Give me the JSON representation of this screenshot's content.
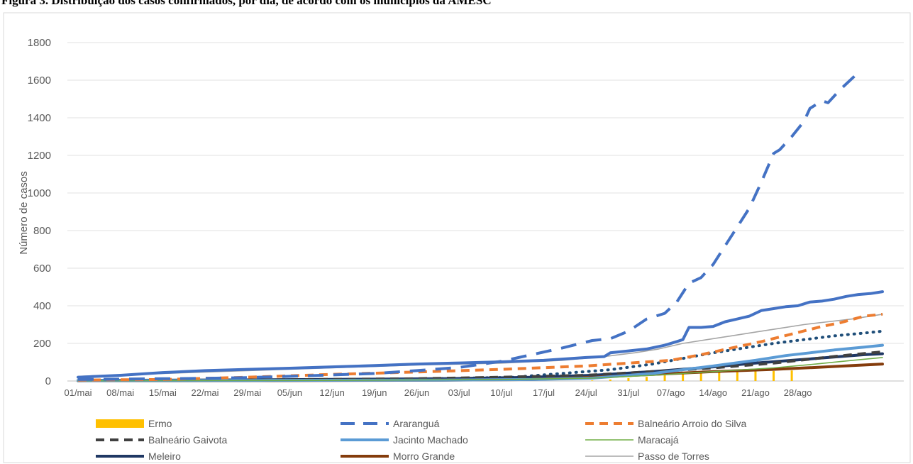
{
  "page_title": "Figura 3. Distribuição dos casos confirmados, por dia, de acordo com os municípios da AMESC",
  "chart_data": {
    "type": "line",
    "title": "",
    "xlabel": "",
    "ylabel": "Número de casos",
    "ylim": [
      0,
      1800
    ],
    "yticks": [
      "0",
      "200",
      "400",
      "600",
      "800",
      "1000",
      "1200",
      "1400",
      "1600",
      "1800"
    ],
    "x_tick_labels": [
      "01/mai",
      "08/mai",
      "15/mai",
      "22/mai",
      "29/mai",
      "05/jun",
      "12/jun",
      "19/jun",
      "26/jun",
      "03/jul",
      "10/jul",
      "17/jul",
      "24/jul",
      "31/jul",
      "07/ago",
      "14/ago",
      "21/ago",
      "28/ago"
    ],
    "x_range_days": [
      0,
      119
    ],
    "grid": "horizontal",
    "legend_position": "bottom",
    "series": [
      {
        "name": "Ermo",
        "style": "bar",
        "color": "#FFC000",
        "points": [
          [
            85,
            3
          ],
          [
            88,
            8
          ],
          [
            91,
            15
          ],
          [
            94,
            22
          ],
          [
            97,
            30
          ],
          [
            100,
            38
          ],
          [
            103,
            43
          ],
          [
            106,
            46
          ],
          [
            109,
            49
          ],
          [
            112,
            51
          ],
          [
            115,
            53
          ],
          [
            118,
            56
          ]
        ]
      },
      {
        "name": "Araranguá",
        "style": "long-dash",
        "color": "#4472C4",
        "points": [
          [
            0,
            8
          ],
          [
            7,
            10
          ],
          [
            14,
            12
          ],
          [
            21,
            14
          ],
          [
            28,
            18
          ],
          [
            35,
            25
          ],
          [
            42,
            32
          ],
          [
            49,
            40
          ],
          [
            56,
            55
          ],
          [
            63,
            72
          ],
          [
            70,
            105
          ],
          [
            75,
            140
          ],
          [
            80,
            175
          ],
          [
            85,
            215
          ],
          [
            88,
            225
          ],
          [
            91,
            265
          ],
          [
            94,
            330
          ],
          [
            97,
            360
          ],
          [
            99,
            420
          ],
          [
            101,
            520
          ],
          [
            103,
            550
          ],
          [
            105,
            620
          ],
          [
            107,
            720
          ],
          [
            109,
            820
          ],
          [
            111,
            920
          ],
          [
            113,
            1060
          ],
          [
            115,
            1210
          ],
          [
            116,
            1230
          ],
          [
            118,
            1300
          ],
          [
            120,
            1380
          ],
          [
            121,
            1450
          ],
          [
            123,
            1490
          ],
          [
            124,
            1480
          ],
          [
            126,
            1550
          ],
          [
            128,
            1610
          ],
          [
            129,
            1640
          ]
        ]
      },
      {
        "name": "Balneário Arroio do Silva",
        "style": "dash",
        "color": "#ED7D31",
        "points": [
          [
            0,
            5
          ],
          [
            14,
            8
          ],
          [
            28,
            20
          ],
          [
            42,
            35
          ],
          [
            56,
            48
          ],
          [
            70,
            62
          ],
          [
            84,
            80
          ],
          [
            91,
            95
          ],
          [
            98,
            110
          ],
          [
            103,
            140
          ],
          [
            108,
            175
          ],
          [
            113,
            210
          ],
          [
            118,
            250
          ],
          [
            123,
            290
          ],
          [
            126,
            310
          ],
          [
            130,
            345
          ],
          [
            133,
            355
          ]
        ]
      },
      {
        "name": "Balneário Gaivota",
        "style": "dash",
        "color": "#404040",
        "points": [
          [
            0,
            2
          ],
          [
            28,
            5
          ],
          [
            56,
            12
          ],
          [
            70,
            20
          ],
          [
            84,
            30
          ],
          [
            95,
            50
          ],
          [
            105,
            70
          ],
          [
            115,
            95
          ],
          [
            122,
            120
          ],
          [
            128,
            140
          ],
          [
            133,
            155
          ]
        ]
      },
      {
        "name": "Jacinto Machado",
        "style": "solid-thick",
        "color": "#5B9BD5",
        "points": [
          [
            0,
            2
          ],
          [
            30,
            3
          ],
          [
            60,
            5
          ],
          [
            75,
            8
          ],
          [
            85,
            15
          ],
          [
            95,
            40
          ],
          [
            105,
            80
          ],
          [
            112,
            110
          ],
          [
            117,
            135
          ],
          [
            121,
            150
          ],
          [
            125,
            165
          ],
          [
            130,
            180
          ],
          [
            133,
            190
          ]
        ]
      },
      {
        "name": "Maracajá",
        "style": "solid-thin",
        "color": "#70AD47",
        "points": [
          [
            0,
            1
          ],
          [
            40,
            3
          ],
          [
            70,
            8
          ],
          [
            85,
            15
          ],
          [
            95,
            30
          ],
          [
            105,
            50
          ],
          [
            115,
            70
          ],
          [
            122,
            90
          ],
          [
            128,
            110
          ],
          [
            133,
            125
          ]
        ]
      },
      {
        "name": "Meleiro",
        "style": "solid-thick",
        "color": "#203864",
        "points": [
          [
            0,
            3
          ],
          [
            30,
            6
          ],
          [
            60,
            12
          ],
          [
            75,
            20
          ],
          [
            85,
            30
          ],
          [
            95,
            50
          ],
          [
            105,
            75
          ],
          [
            112,
            95
          ],
          [
            118,
            110
          ],
          [
            124,
            125
          ],
          [
            130,
            140
          ],
          [
            133,
            145
          ]
        ]
      },
      {
        "name": "Morro Grande",
        "style": "solid-thick",
        "color": "#843C0C",
        "points": [
          [
            0,
            1
          ],
          [
            30,
            2
          ],
          [
            60,
            4
          ],
          [
            75,
            8
          ],
          [
            85,
            20
          ],
          [
            95,
            35
          ],
          [
            105,
            50
          ],
          [
            115,
            62
          ],
          [
            122,
            72
          ],
          [
            128,
            82
          ],
          [
            133,
            90
          ]
        ]
      },
      {
        "name": "Passo de Torres",
        "style": "solid-thin",
        "color": "#A5A5A5",
        "points": [
          [
            0,
            25
          ],
          [
            14,
            40
          ],
          [
            28,
            55
          ],
          [
            42,
            70
          ],
          [
            56,
            85
          ],
          [
            70,
            95
          ],
          [
            80,
            110
          ],
          [
            87,
            130
          ],
          [
            92,
            150
          ],
          [
            96,
            170
          ],
          [
            100,
            200
          ],
          [
            104,
            220
          ],
          [
            108,
            240
          ],
          [
            112,
            260
          ],
          [
            116,
            280
          ],
          [
            120,
            300
          ],
          [
            124,
            315
          ],
          [
            128,
            330
          ],
          [
            133,
            355
          ]
        ]
      },
      {
        "name": "",
        "style": "dotted",
        "color": "#1F4E79",
        "points": [
          [
            0,
            2
          ],
          [
            28,
            5
          ],
          [
            56,
            10
          ],
          [
            72,
            20
          ],
          [
            80,
            40
          ],
          [
            88,
            60
          ],
          [
            95,
            90
          ],
          [
            100,
            120
          ],
          [
            105,
            150
          ],
          [
            110,
            175
          ],
          [
            115,
            200
          ],
          [
            120,
            220
          ],
          [
            125,
            240
          ],
          [
            130,
            255
          ],
          [
            133,
            265
          ]
        ]
      },
      {
        "name": "",
        "style": "solid-thick",
        "color": "#4472C4",
        "points": [
          [
            0,
            20
          ],
          [
            7,
            30
          ],
          [
            14,
            45
          ],
          [
            21,
            55
          ],
          [
            28,
            62
          ],
          [
            35,
            68
          ],
          [
            42,
            75
          ],
          [
            49,
            82
          ],
          [
            56,
            90
          ],
          [
            63,
            96
          ],
          [
            70,
            102
          ],
          [
            77,
            110
          ],
          [
            84,
            125
          ],
          [
            87,
            130
          ],
          [
            88,
            150
          ],
          [
            91,
            160
          ],
          [
            94,
            170
          ],
          [
            97,
            190
          ],
          [
            99,
            210
          ],
          [
            100,
            220
          ],
          [
            101,
            285
          ],
          [
            103,
            285
          ],
          [
            105,
            290
          ],
          [
            107,
            315
          ],
          [
            109,
            330
          ],
          [
            111,
            345
          ],
          [
            113,
            375
          ],
          [
            115,
            385
          ],
          [
            117,
            395
          ],
          [
            119,
            400
          ],
          [
            121,
            420
          ],
          [
            123,
            425
          ],
          [
            125,
            435
          ],
          [
            127,
            450
          ],
          [
            129,
            460
          ],
          [
            131,
            465
          ],
          [
            133,
            475
          ]
        ]
      }
    ]
  }
}
